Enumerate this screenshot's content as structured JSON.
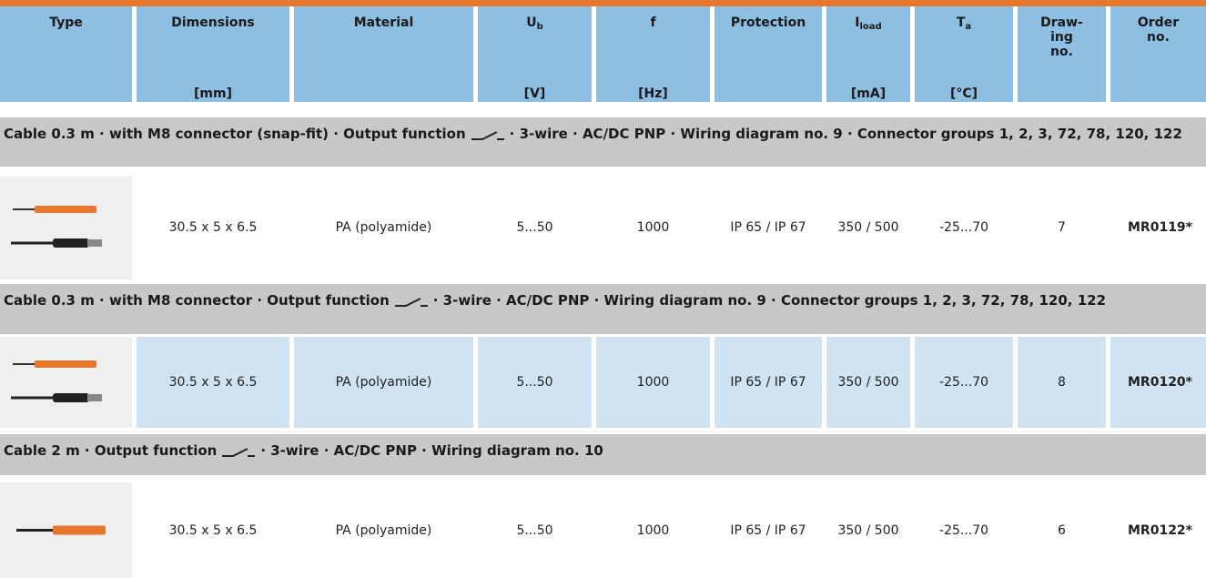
{
  "header": {
    "columns": [
      {
        "lines": [
          "Type"
        ]
      },
      {
        "lines": [
          "Dimensions"
        ],
        "unit": "[mm]"
      },
      {
        "lines": [
          "Material"
        ]
      },
      {
        "lines": [
          "U"
        ],
        "sub": "b",
        "unit": "[V]"
      },
      {
        "lines": [
          "f"
        ],
        "unit": "[Hz]"
      },
      {
        "lines": [
          "Protection"
        ]
      },
      {
        "lines": [
          "I"
        ],
        "sub": "load",
        "unit": "[mA]"
      },
      {
        "lines": [
          "T"
        ],
        "sub": "a",
        "unit": "[°C]"
      },
      {
        "lines": [
          "Draw-",
          "ing",
          "no."
        ]
      },
      {
        "lines": [
          "Order",
          "no."
        ]
      }
    ]
  },
  "sections": [
    {
      "title_before": "Cable 0.3 m · with M8 connector (snap-fit) · Output function",
      "title_after": "· 3-wire · AC/DC PNP · Wiring diagram no. 9 · Connector groups 1, 2, 3, 72, 78, 120, 122",
      "cells": [
        "30.5 x 5 x 6.5",
        "PA (polyamide)",
        "5...50",
        "1000",
        "IP 65 / IP 67",
        "350 / 500",
        "-25...70",
        "7",
        "MR0119*"
      ]
    },
    {
      "title_before": "Cable 0.3 m · with M8 connector · Output function",
      "title_after": "· 3-wire · AC/DC PNP · Wiring diagram no. 9 · Connector groups 1, 2, 3, 72, 78, 120, 122",
      "cells": [
        "30.5 x 5 x 6.5",
        "PA (polyamide)",
        "5...50",
        "1000",
        "IP 65 / IP 67",
        "350 / 500",
        "-25...70",
        "8",
        "MR0120*"
      ]
    },
    {
      "title_before": "Cable 2 m · Output function",
      "title_after": "· 3-wire · AC/DC PNP · Wiring diagram no. 10",
      "cells": [
        "30.5 x 5 x 6.5",
        "PA (polyamide)",
        "5...50",
        "1000",
        "IP 65 / IP 67",
        "350 / 500",
        "-25...70",
        "6",
        "MR0122*"
      ]
    }
  ]
}
